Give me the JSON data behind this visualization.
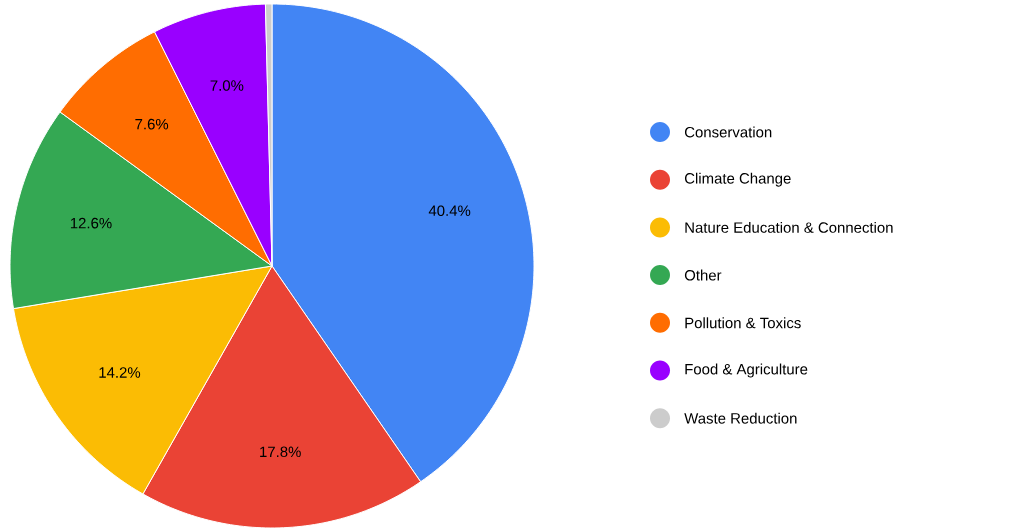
{
  "chart_data": {
    "type": "pie",
    "categories": [
      "Conservation",
      "Climate Change",
      "Nature Education & Connection",
      "Other",
      "Pollution & Toxics",
      "Food & Agriculture",
      "Waste Reduction"
    ],
    "values": [
      40.4,
      17.8,
      14.2,
      12.6,
      7.6,
      7.0,
      0.4
    ],
    "value_labels": [
      "40.4%",
      "17.8%",
      "14.2%",
      "12.6%",
      "7.6%",
      "7.0%",
      null
    ],
    "colors": [
      "#4285f4",
      "#ea4335",
      "#fbbc04",
      "#34a853",
      "#ff6d01",
      "#9900ff",
      "#cccccc"
    ],
    "legend": "right"
  }
}
